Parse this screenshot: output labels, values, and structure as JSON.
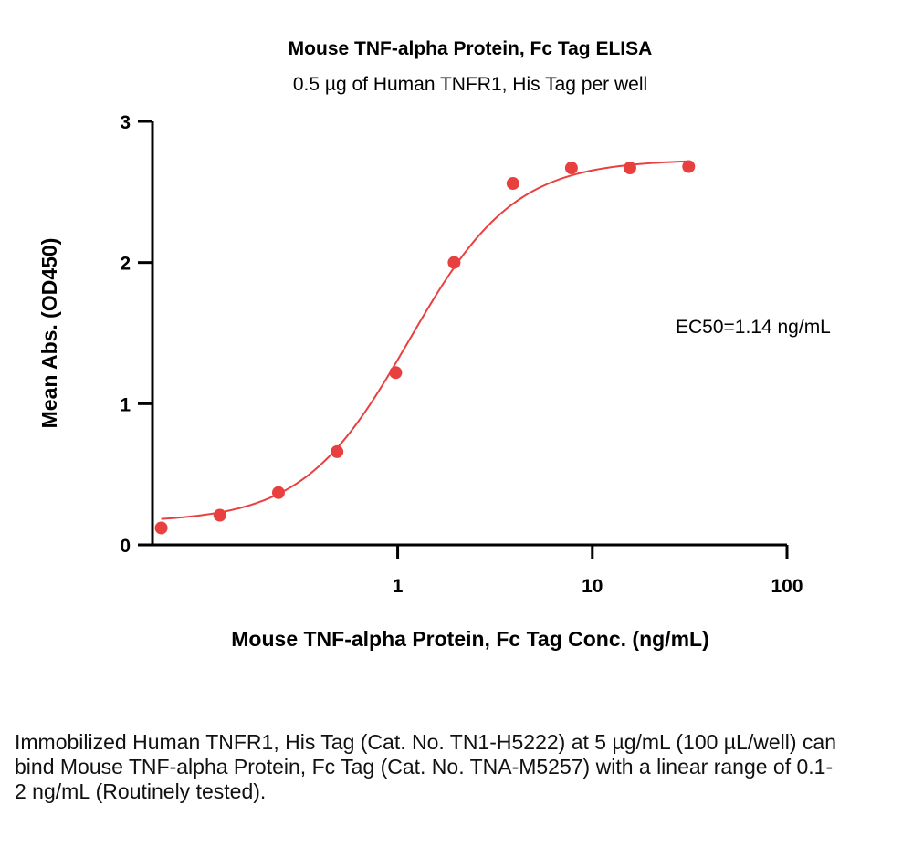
{
  "chart_data": {
    "type": "scatter",
    "title": "Mouse TNF-alpha Protein, Fc Tag ELISA",
    "subtitle": "0.5 µg of Human TNFR1, His Tag per well",
    "xlabel": "Mouse TNF-alpha Protein, Fc Tag Conc. (ng/mL)",
    "ylabel": "Mean Abs. (OD450)",
    "x_scale": "log",
    "xlim": [
      0.055,
      100
    ],
    "ylim": [
      0,
      3
    ],
    "x_ticks": [
      1,
      10,
      100
    ],
    "x_tick_labels": [
      "1",
      "10",
      "100"
    ],
    "y_ticks": [
      0,
      1,
      2,
      3
    ],
    "y_tick_labels": [
      "0",
      "1",
      "2",
      "3"
    ],
    "grid": false,
    "color": "#e8403f",
    "series": [
      {
        "x": [
          0.061,
          0.122,
          0.244,
          0.488,
          0.977,
          1.95,
          3.91,
          7.81,
          15.6,
          31.25
        ],
        "y": [
          0.12,
          0.21,
          0.37,
          0.66,
          1.22,
          2.0,
          2.56,
          2.67,
          2.67,
          2.68
        ]
      }
    ],
    "fit": {
      "bottom": 0.16,
      "top": 2.73,
      "ec50": 1.14,
      "hill": 1.6
    },
    "annotation": "EC50=1.14 ng/mL"
  },
  "caption": "Immobilized Human TNFR1, His Tag (Cat. No. TN1-H5222) at 5 µg/mL (100 µL/well) can bind Mouse TNF-alpha Protein, Fc Tag (Cat. No. TNA-M5257) with a linear range of 0.1-2 ng/mL (Routinely tested)."
}
